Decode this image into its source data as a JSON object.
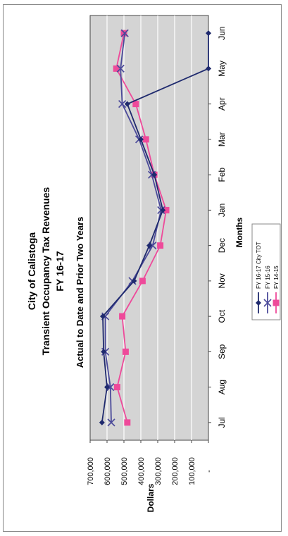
{
  "colors": {
    "plot_bg": "#d4d4d4",
    "grid": "#ffffff",
    "frame": "#444444",
    "fy1617": "#1f2a6e",
    "fy1516": "#4b4a9a",
    "fy1415": "#ee4a9a"
  },
  "chart_data": {
    "type": "line",
    "title": "City of Calistoga",
    "subtitle_lines": [
      "Transient Occupancy Tax Revenues",
      "FY 16-17"
    ],
    "chart_caption": "Actual to Date and Prior Two Years",
    "xlabel": "Months",
    "ylabel": "Dollars",
    "categories": [
      "Jul",
      "Aug",
      "Sep",
      "Oct",
      "Nov",
      "Dec",
      "Jan",
      "Feb",
      "Mar",
      "Apr",
      "May",
      "Jun"
    ],
    "y_ticks": [
      "-",
      "100,000",
      "200,000",
      "300,000",
      "400,000",
      "500,000",
      "600,000",
      "700,000"
    ],
    "ylim": [
      0,
      700000
    ],
    "grid": true,
    "orientation": "rotated 90 degrees counter-clockwise",
    "legend_position": "bottom-right",
    "series": [
      {
        "name": "FY 16-17 City TOT",
        "color_key": "fy1617",
        "marker": "diamond",
        "values": [
          630000,
          600000,
          620000,
          625000,
          440000,
          350000,
          270000,
          320000,
          400000,
          480000,
          0,
          0
        ]
      },
      {
        "name": "FY 15-16",
        "color_key": "fy1516",
        "marker": "x",
        "values": [
          575000,
          580000,
          610000,
          610000,
          450000,
          330000,
          280000,
          335000,
          410000,
          510000,
          520000,
          495000
        ]
      },
      {
        "name": "FY 14-15",
        "color_key": "fy1415",
        "marker": "square",
        "values": [
          480000,
          540000,
          490000,
          510000,
          390000,
          285000,
          250000,
          320000,
          370000,
          430000,
          545000,
          500000
        ]
      }
    ]
  }
}
